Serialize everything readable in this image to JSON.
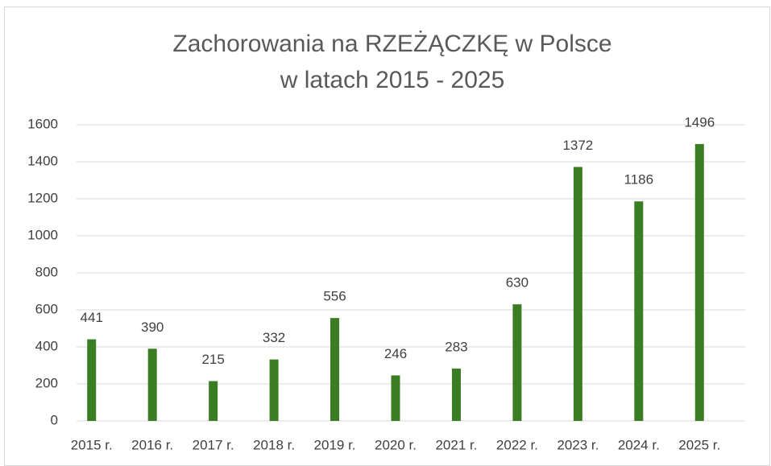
{
  "chart_data": {
    "type": "bar",
    "title": [
      "Zachorowania na RZEŻĄCZKĘ w Polsce",
      "w latach 2015 - 2025"
    ],
    "categories": [
      "2015 r.",
      "2016 r.",
      "2017 r.",
      "2018 r.",
      "2019 r.",
      "2020 r.",
      "2021 r.",
      "2022 r.",
      "2023 r.",
      "2024 r.",
      "2025 r."
    ],
    "values": [
      441,
      390,
      215,
      332,
      556,
      246,
      283,
      630,
      1372,
      1186,
      1496
    ],
    "color": "#3b7d23",
    "ylim": [
      0,
      1600
    ],
    "yticks": [
      0,
      200,
      400,
      600,
      800,
      1000,
      1200,
      1400,
      1600
    ],
    "grid": true
  }
}
